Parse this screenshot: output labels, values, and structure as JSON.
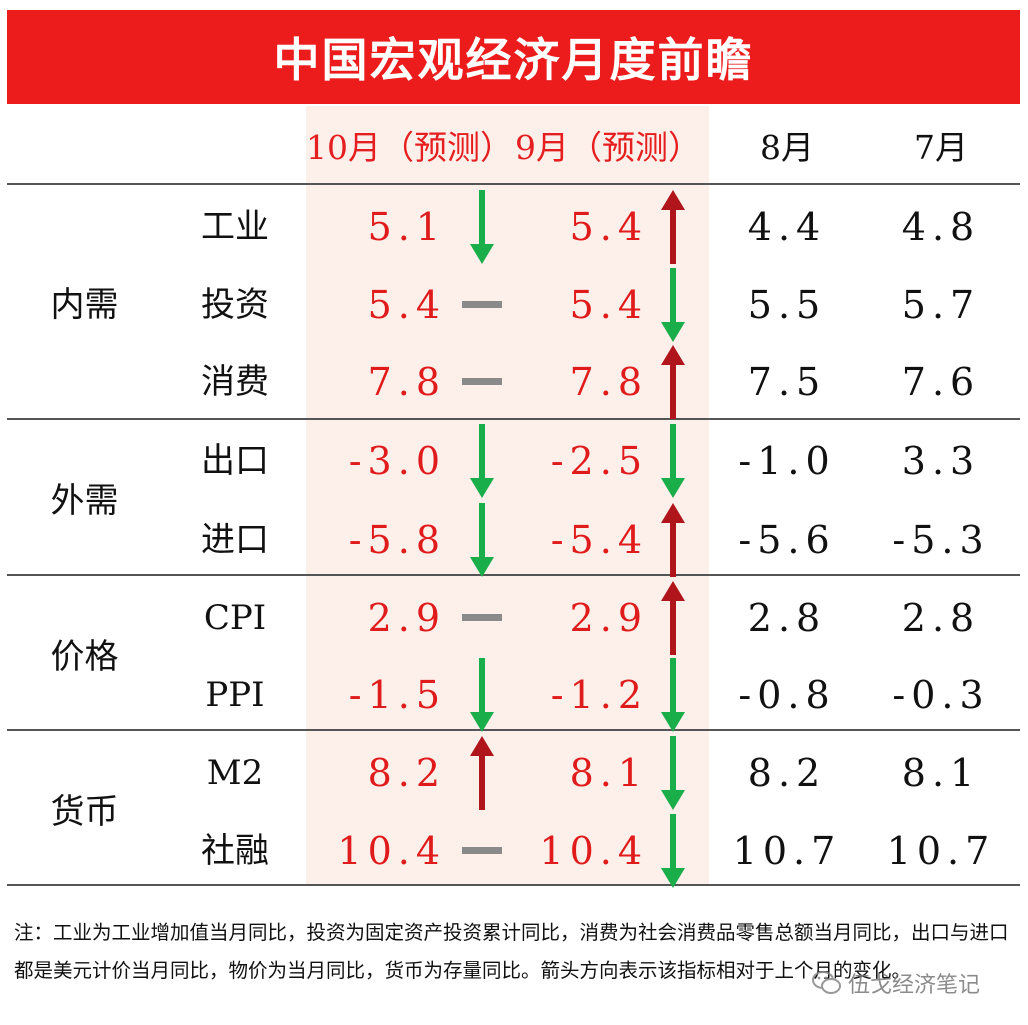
{
  "title": "中国宏观经济月度前瞻",
  "columns": [
    "10月（预测）",
    "9月（预测）",
    "8月",
    "7月"
  ],
  "groups": [
    {
      "label": "内需",
      "rows": [
        0,
        1,
        2
      ]
    },
    {
      "label": "外需",
      "rows": [
        3,
        4
      ]
    },
    {
      "label": "价格",
      "rows": [
        5,
        6
      ]
    },
    {
      "label": "货币",
      "rows": [
        7,
        8
      ]
    }
  ],
  "rows": [
    {
      "indicator": "工业",
      "oct": "5.1",
      "oct_dir": "down",
      "sep": "5.4",
      "sep_dir": "up",
      "aug": "4.4",
      "jul": "4.8"
    },
    {
      "indicator": "投资",
      "oct": "5.4",
      "oct_dir": "flat",
      "sep": "5.4",
      "sep_dir": "down",
      "aug": "5.5",
      "jul": "5.7"
    },
    {
      "indicator": "消费",
      "oct": "7.8",
      "oct_dir": "flat",
      "sep": "7.8",
      "sep_dir": "up",
      "aug": "7.5",
      "jul": "7.6"
    },
    {
      "indicator": "出口",
      "oct": "-3.0",
      "oct_dir": "down",
      "sep": "-2.5",
      "sep_dir": "down",
      "aug": "-1.0",
      "jul": "3.3"
    },
    {
      "indicator": "进口",
      "oct": "-5.8",
      "oct_dir": "down",
      "sep": "-5.4",
      "sep_dir": "up",
      "aug": "-5.6",
      "jul": "-5.3"
    },
    {
      "indicator": "CPI",
      "oct": "2.9",
      "oct_dir": "flat",
      "sep": "2.9",
      "sep_dir": "up",
      "aug": "2.8",
      "jul": "2.8"
    },
    {
      "indicator": "PPI",
      "oct": "-1.5",
      "oct_dir": "down",
      "sep": "-1.2",
      "sep_dir": "down",
      "aug": "-0.8",
      "jul": "-0.3"
    },
    {
      "indicator": "M2",
      "oct": "8.2",
      "oct_dir": "up",
      "sep": "8.1",
      "sep_dir": "down",
      "aug": "8.2",
      "jul": "8.1"
    },
    {
      "indicator": "社融",
      "oct": "10.4",
      "oct_dir": "flat",
      "sep": "10.4",
      "sep_dir": "down",
      "aug": "10.7",
      "jul": "10.7"
    }
  ],
  "note": "注：工业为工业增加值当月同比，投资为固定资产投资累计同比，消费为社会消费品零售总额当月同比，出口与进口都是美元计价当月同比，物价为当月同比，货币为存量同比。箭头方向表示该指标相对于上个月的变化。",
  "watermark": "伍戈经济笔记",
  "colors": {
    "banner": "#ec1c1c",
    "forecast_text": "#e01b1b",
    "forecast_bg": "#fdefea",
    "arrow_up": "#b0151c",
    "arrow_down": "#1aae4a",
    "flat": "#8a8a8a"
  },
  "icons": {
    "up": "arrow-up-icon",
    "down": "arrow-down-icon",
    "flat": "flat-dash-icon",
    "watermark": "wechat-icon"
  }
}
